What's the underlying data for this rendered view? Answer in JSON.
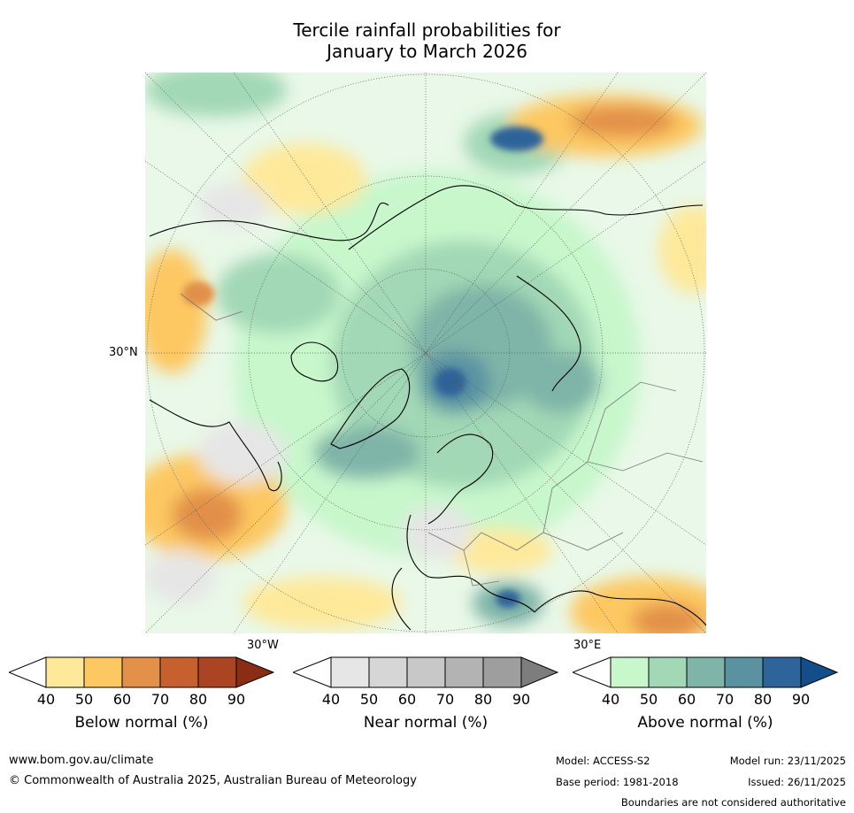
{
  "title": {
    "line1": "Tercile rainfall probabilities for",
    "line2": "January to March 2026"
  },
  "map": {
    "name": "Northern hemisphere polar stereographic map",
    "lat_label": "30°N",
    "lon_labels": {
      "west": "30°W",
      "east": "30°E"
    }
  },
  "colorbars": [
    {
      "label": "Below normal (%)",
      "ticks": [
        "40",
        "50",
        "60",
        "70",
        "80",
        "90"
      ],
      "colors": [
        "#ffffff",
        "#fee99a",
        "#fdc862",
        "#e2904a",
        "#c7602f",
        "#ab4422",
        "#8b2c14"
      ]
    },
    {
      "label": "Near normal (%)",
      "ticks": [
        "40",
        "50",
        "60",
        "70",
        "80",
        "90"
      ],
      "colors": [
        "#ffffff",
        "#e6e6e6",
        "#d6d6d6",
        "#c8c8c8",
        "#b3b3b3",
        "#9e9e9e",
        "#7d7d7d"
      ]
    },
    {
      "label": "Above normal (%)",
      "ticks": [
        "40",
        "50",
        "60",
        "70",
        "80",
        "90"
      ],
      "colors": [
        "#ffffff",
        "#c8f7cc",
        "#a2d8b5",
        "#7fb4a8",
        "#5a92a2",
        "#2f649a",
        "#134e8b"
      ]
    }
  ],
  "footer": {
    "url": "www.bom.gov.au/climate",
    "copyright": "© Commonwealth of Australia 2025, Australian Bureau of Meteorology",
    "model": "Model: ACCESS-S2",
    "model_run": "Model run: 23/11/2025",
    "base_period": "Base period: 1981-2018",
    "issued": "Issued: 26/11/2025",
    "disclaimer": "Boundaries are not considered authoritative"
  }
}
